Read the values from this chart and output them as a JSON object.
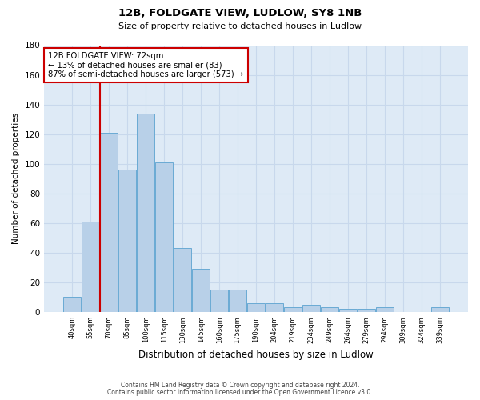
{
  "title1": "12B, FOLDGATE VIEW, LUDLOW, SY8 1NB",
  "title2": "Size of property relative to detached houses in Ludlow",
  "xlabel": "Distribution of detached houses by size in Ludlow",
  "ylabel": "Number of detached properties",
  "bar_labels": [
    "40sqm",
    "55sqm",
    "70sqm",
    "85sqm",
    "100sqm",
    "115sqm",
    "130sqm",
    "145sqm",
    "160sqm",
    "175sqm",
    "190sqm",
    "204sqm",
    "219sqm",
    "234sqm",
    "249sqm",
    "264sqm",
    "279sqm",
    "294sqm",
    "309sqm",
    "324sqm",
    "339sqm"
  ],
  "bar_values": [
    10,
    61,
    121,
    96,
    134,
    101,
    43,
    29,
    15,
    15,
    6,
    6,
    3,
    5,
    3,
    2,
    2,
    3,
    0,
    0,
    3
  ],
  "bar_color": "#b8d0e8",
  "bar_edge_color": "#6aaad4",
  "vline_color": "#cc0000",
  "annotation_text": "12B FOLDGATE VIEW: 72sqm\n← 13% of detached houses are smaller (83)\n87% of semi-detached houses are larger (573) →",
  "annotation_box_color": "#ffffff",
  "annotation_box_edge_color": "#cc0000",
  "ylim": [
    0,
    180
  ],
  "yticks": [
    0,
    20,
    40,
    60,
    80,
    100,
    120,
    140,
    160,
    180
  ],
  "grid_color": "#c8d8ec",
  "bg_color": "#deeaf6",
  "footer1": "Contains HM Land Registry data © Crown copyright and database right 2024.",
  "footer2": "Contains public sector information licensed under the Open Government Licence v3.0."
}
